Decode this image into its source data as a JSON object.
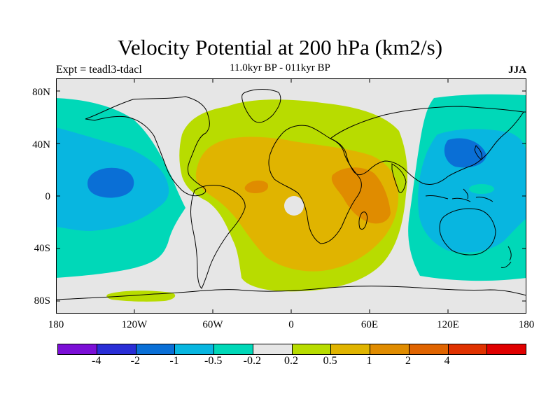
{
  "title": "Velocity Potential at 200 hPa (km2/s)",
  "subtitle": "11.0kyr BP - 011kyr BP",
  "left_label": "Expt = teadl3-tdacl",
  "right_label": "JJA",
  "lat_labels": [
    "80N",
    "40N",
    "0",
    "40S",
    "80S"
  ],
  "lon_labels": [
    "180",
    "120W",
    "60W",
    "0",
    "60E",
    "120E",
    "180"
  ],
  "legend": {
    "colors": [
      "#7b0fd6",
      "#2a2ed6",
      "#0a6fd6",
      "#08b6e0",
      "#00d8b8",
      "#e6e6e6",
      "#b8dc00",
      "#e0b400",
      "#e08c00",
      "#e06400",
      "#e03200",
      "#e00000"
    ],
    "labels": [
      "-4",
      "-2",
      "-1",
      "-0.5",
      "-0.2",
      "0.2",
      "0.5",
      "1",
      "2",
      "4"
    ]
  },
  "colors": {
    "neutral": "#e6e6e6",
    "teal": "#00d8b8",
    "cyan": "#08b6e0",
    "blue": "#0a6fd6",
    "lime": "#b8dc00",
    "gold": "#e0b400",
    "orange": "#e08c00",
    "coast": "#000000"
  }
}
